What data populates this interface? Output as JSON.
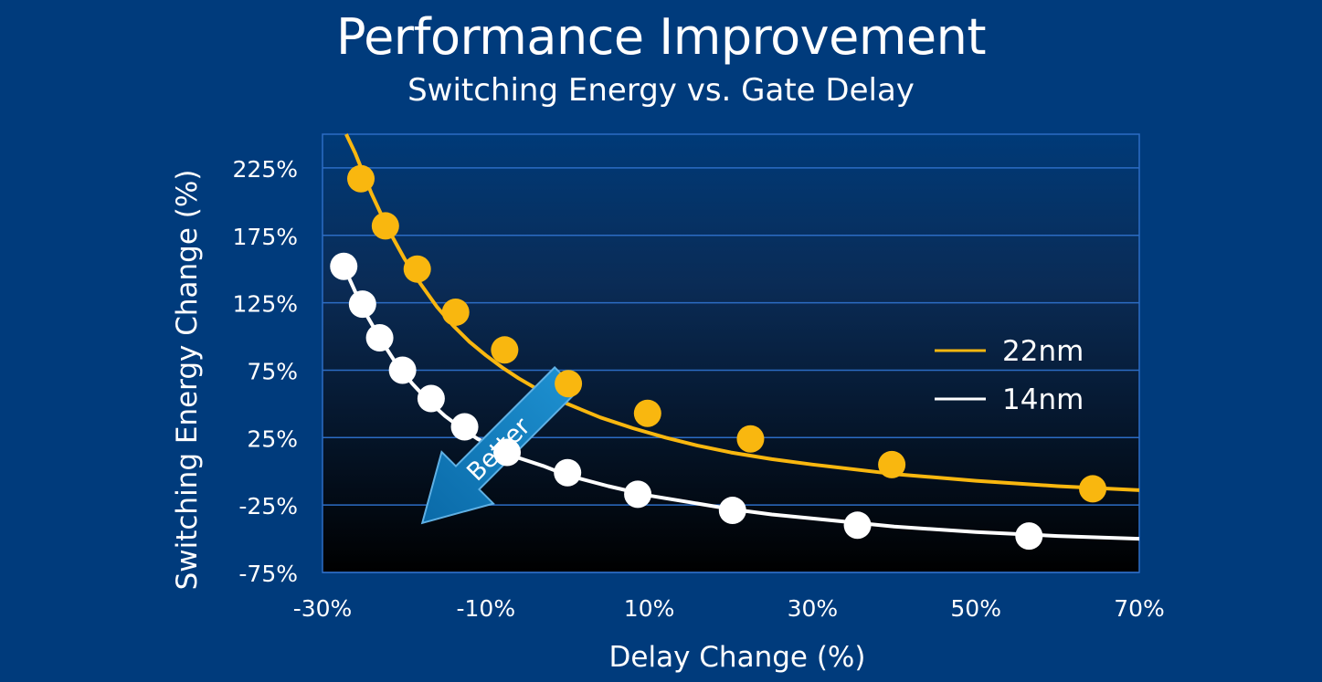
{
  "chart_data": {
    "type": "line",
    "title": "Performance Improvement",
    "subtitle": "Switching Energy vs. Gate Delay",
    "xlabel": "Delay Change (%)",
    "ylabel": "Switching Energy Change (%)",
    "xlim": [
      -30,
      70
    ],
    "ylim": [
      -75,
      250
    ],
    "xticks": [
      -30,
      -10,
      10,
      30,
      50,
      70
    ],
    "xtick_labels": [
      "-30%",
      "-10%",
      "10%",
      "30%",
      "50%",
      "70%"
    ],
    "yticks": [
      -75,
      -25,
      25,
      75,
      125,
      175,
      225
    ],
    "ytick_labels": [
      "-75%",
      "-25%",
      "25%",
      "75%",
      "125%",
      "175%",
      "225%"
    ],
    "grid": true,
    "legend_position": "right",
    "annotation": "Better",
    "series": [
      {
        "name": "22nm",
        "color": "#f9b70f",
        "curve": [
          [
            -27.1,
            250
          ],
          [
            -26,
            236
          ],
          [
            -24,
            206
          ],
          [
            -22,
            180
          ],
          [
            -20,
            158
          ],
          [
            -18,
            139
          ],
          [
            -16,
            122
          ],
          [
            -14,
            108
          ],
          [
            -12,
            96
          ],
          [
            -10,
            86
          ],
          [
            -8,
            77
          ],
          [
            -6,
            69
          ],
          [
            -4,
            62
          ],
          [
            -2,
            56
          ],
          [
            0,
            50
          ],
          [
            4,
            40
          ],
          [
            8,
            32
          ],
          [
            12,
            25
          ],
          [
            16,
            19
          ],
          [
            20,
            14
          ],
          [
            25,
            9
          ],
          [
            30,
            5
          ],
          [
            40,
            -2
          ],
          [
            50,
            -7
          ],
          [
            60,
            -11
          ],
          [
            70,
            -14
          ]
        ],
        "points": [
          [
            -25.3,
            217
          ],
          [
            -22.3,
            182
          ],
          [
            -18.4,
            150
          ],
          [
            -13.7,
            118
          ],
          [
            -7.7,
            90
          ],
          [
            0.1,
            65
          ],
          [
            9.8,
            43
          ],
          [
            22.4,
            24
          ],
          [
            39.7,
            5
          ],
          [
            64.3,
            -13
          ]
        ]
      },
      {
        "name": "14nm",
        "color": "#ffffff",
        "curve": [
          [
            -27.4,
            152
          ],
          [
            -25,
            120
          ],
          [
            -23,
            99
          ],
          [
            -21,
            80
          ],
          [
            -19,
            65
          ],
          [
            -17,
            52
          ],
          [
            -15,
            41
          ],
          [
            -13,
            32
          ],
          [
            -11,
            24
          ],
          [
            -9,
            18
          ],
          [
            -6,
            10
          ],
          [
            -3,
            4
          ],
          [
            0,
            -3
          ],
          [
            5,
            -11
          ],
          [
            10,
            -18
          ],
          [
            15,
            -23
          ],
          [
            20,
            -28
          ],
          [
            25,
            -32
          ],
          [
            30,
            -35
          ],
          [
            40,
            -41
          ],
          [
            50,
            -45
          ],
          [
            60,
            -48
          ],
          [
            70,
            -50
          ]
        ],
        "points": [
          [
            -27.4,
            152
          ],
          [
            -25.1,
            124
          ],
          [
            -23.0,
            99
          ],
          [
            -20.2,
            75
          ],
          [
            -16.7,
            54
          ],
          [
            -12.6,
            33
          ],
          [
            -7.4,
            14
          ],
          [
            0.0,
            -1
          ],
          [
            8.6,
            -17
          ],
          [
            20.2,
            -29
          ],
          [
            35.5,
            -40
          ],
          [
            56.5,
            -48
          ]
        ]
      }
    ]
  }
}
